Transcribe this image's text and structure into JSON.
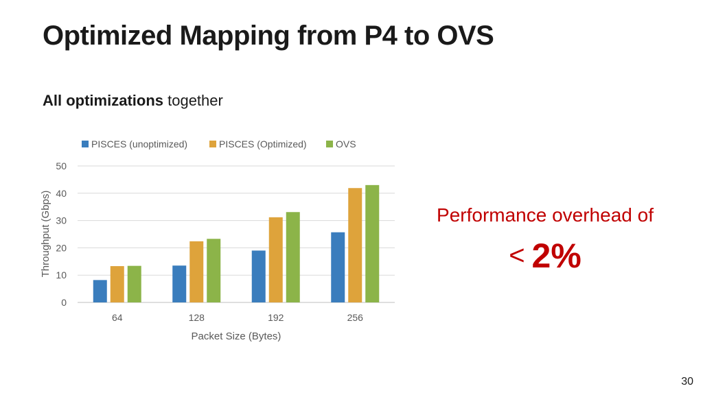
{
  "slide": {
    "title": "Optimized Mapping from P4 to OVS",
    "subtitle_bold": "All optimizations",
    "subtitle_rest": " together",
    "callout_line1": "Performance overhead of",
    "callout_lt": "<",
    "callout_value": "2%",
    "page_number": "30"
  },
  "chart_data": {
    "type": "bar",
    "categories": [
      "64",
      "128",
      "192",
      "256"
    ],
    "series": [
      {
        "name": "PISCES (unoptimized)",
        "color": "#3a7dbd",
        "values": [
          8.2,
          13.5,
          19,
          25.7
        ]
      },
      {
        "name": "PISCES (Optimized)",
        "color": "#dea33b",
        "values": [
          13.3,
          22.4,
          31.2,
          41.9
        ]
      },
      {
        "name": "OVS",
        "color": "#8cb449",
        "values": [
          13.4,
          23.3,
          33.1,
          43
        ]
      }
    ],
    "title": "",
    "xlabel": "Packet Size (Bytes)",
    "ylabel": "Throughput (Gbps)",
    "ylim": [
      0,
      50
    ],
    "yticks": [
      0,
      10,
      20,
      30,
      40,
      50
    ],
    "grid": true,
    "legend_position": "top"
  }
}
